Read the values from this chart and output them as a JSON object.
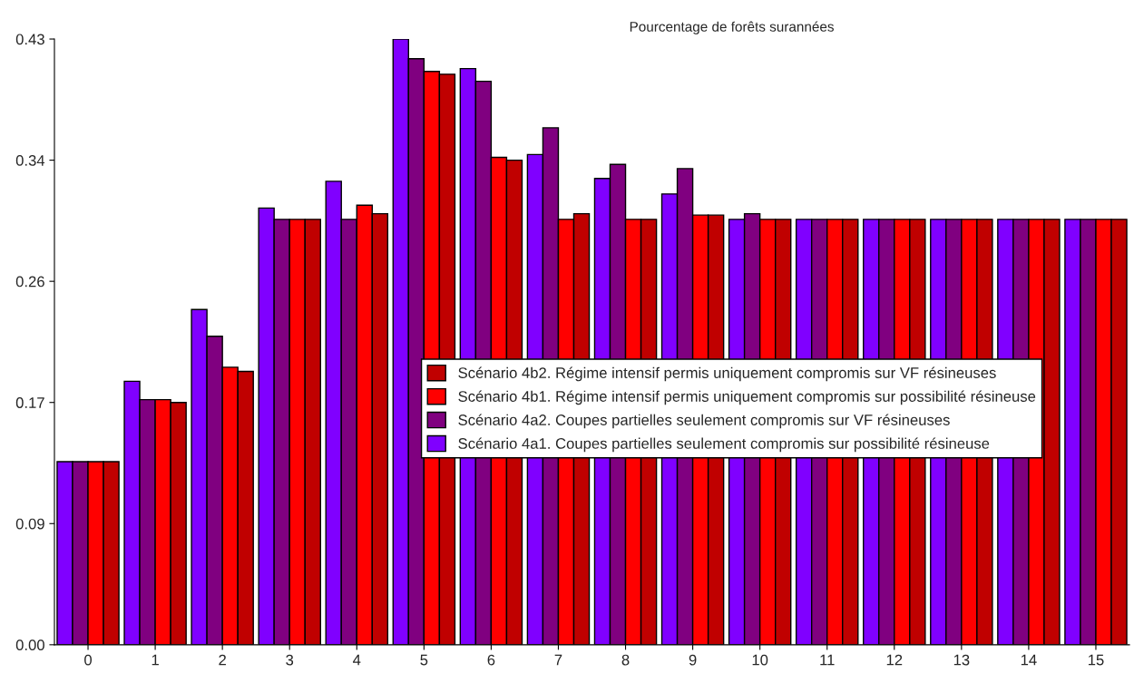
{
  "chart_data": {
    "type": "bar",
    "title": "Pourcentage de forêts surannées",
    "categories": [
      "0",
      "1",
      "2",
      "3",
      "4",
      "5",
      "6",
      "7",
      "8",
      "9",
      "10",
      "11",
      "12",
      "13",
      "14",
      "15"
    ],
    "series": [
      {
        "name": "Scénario 4a1. Coupes partielles seulement compromis sur possibilité résineuse",
        "color": "#8000ff",
        "values": [
          0.13,
          0.187,
          0.238,
          0.31,
          0.329,
          0.43,
          0.409,
          0.348,
          0.331,
          0.32,
          0.302,
          0.302,
          0.302,
          0.302,
          0.302,
          0.302
        ]
      },
      {
        "name": "Scénario 4a2. Coupes partielles seulement compromis sur VF résineuses",
        "color": "#800080",
        "values": [
          0.13,
          0.174,
          0.219,
          0.302,
          0.302,
          0.416,
          0.4,
          0.367,
          0.341,
          0.338,
          0.306,
          0.302,
          0.302,
          0.302,
          0.302,
          0.302
        ]
      },
      {
        "name": "Scénario 4b1. Régime intensif permis uniquement compromis sur possibilité résineuse",
        "color": "#ff0000",
        "values": [
          0.13,
          0.174,
          0.197,
          0.302,
          0.312,
          0.407,
          0.346,
          0.302,
          0.302,
          0.305,
          0.302,
          0.302,
          0.302,
          0.302,
          0.302,
          0.302
        ]
      },
      {
        "name": "Scénario 4b2. Régime intensif permis uniquement compromis sur VF résineuses",
        "color": "#c00000",
        "values": [
          0.13,
          0.172,
          0.194,
          0.302,
          0.306,
          0.405,
          0.344,
          0.306,
          0.302,
          0.305,
          0.302,
          0.302,
          0.302,
          0.302,
          0.302,
          0.302
        ]
      }
    ],
    "ylim": [
      0,
      0.43
    ],
    "yticks": [
      {
        "value": 0,
        "label": "0.00"
      },
      {
        "value": 0.086,
        "label": "0.09"
      },
      {
        "value": 0.172,
        "label": "0.17"
      },
      {
        "value": 0.258,
        "label": "0.26"
      },
      {
        "value": 0.344,
        "label": "0.34"
      },
      {
        "value": 0.43,
        "label": "0.43"
      }
    ],
    "grid": false,
    "legend": "center"
  }
}
